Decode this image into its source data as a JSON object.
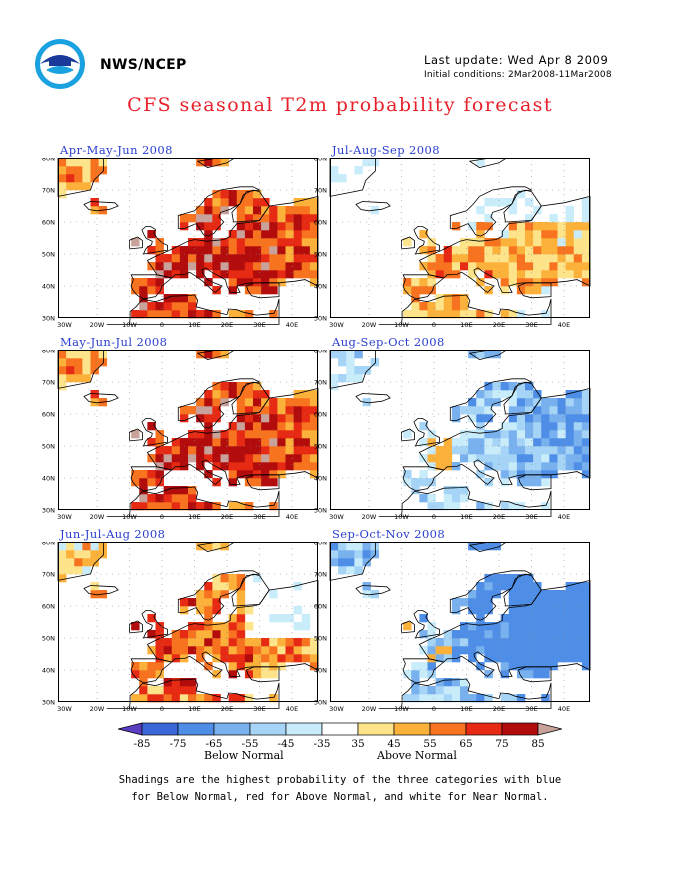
{
  "header": {
    "org": "NWS/NCEP",
    "last_update": "Last update: Wed Apr  8 2009",
    "initial_conditions": "Initial conditions: 2Mar2008-11Mar2008",
    "title": "CFS seasonal T2m probability forecast"
  },
  "panels": [
    {
      "title": "Apr-May-Jun 2008",
      "pattern": "warm-strong"
    },
    {
      "title": "Jul-Aug-Sep 2008",
      "pattern": "warm-weak"
    },
    {
      "title": "May-Jun-Jul 2008",
      "pattern": "warm-strong"
    },
    {
      "title": "Aug-Sep-Oct 2008",
      "pattern": "cool-weak"
    },
    {
      "title": "Jun-Jul-Aug 2008",
      "pattern": "warm-mid"
    },
    {
      "title": "Sep-Oct-Nov 2008",
      "pattern": "cool-strong"
    }
  ],
  "axes": {
    "lat_labels": [
      "80N",
      "70N",
      "60N",
      "50N",
      "40N",
      "30N"
    ],
    "lon_labels": [
      "30W",
      "20W",
      "10W",
      "0",
      "10E",
      "20E",
      "30E",
      "40E"
    ]
  },
  "legend": {
    "colors": [
      "#5a3dc0",
      "#3a66d8",
      "#4f8ee6",
      "#79b0ee",
      "#a6d4f6",
      "#c9ecfb",
      "#ffffff",
      "#fde38a",
      "#fbb13a",
      "#f7731f",
      "#e62a13",
      "#b20c0c",
      "#c9a29b"
    ],
    "tick_labels": [
      "-85",
      "-75",
      "-65",
      "-55",
      "-45",
      "-35",
      "35",
      "45",
      "55",
      "65",
      "75",
      "85"
    ],
    "below_label": "Below Normal",
    "above_label": "Above Normal"
  },
  "footnote": [
    "Shadings are the highest probability of the three categories with blue",
    "for Below Normal, red for Above Normal, and white for Near Normal."
  ]
}
